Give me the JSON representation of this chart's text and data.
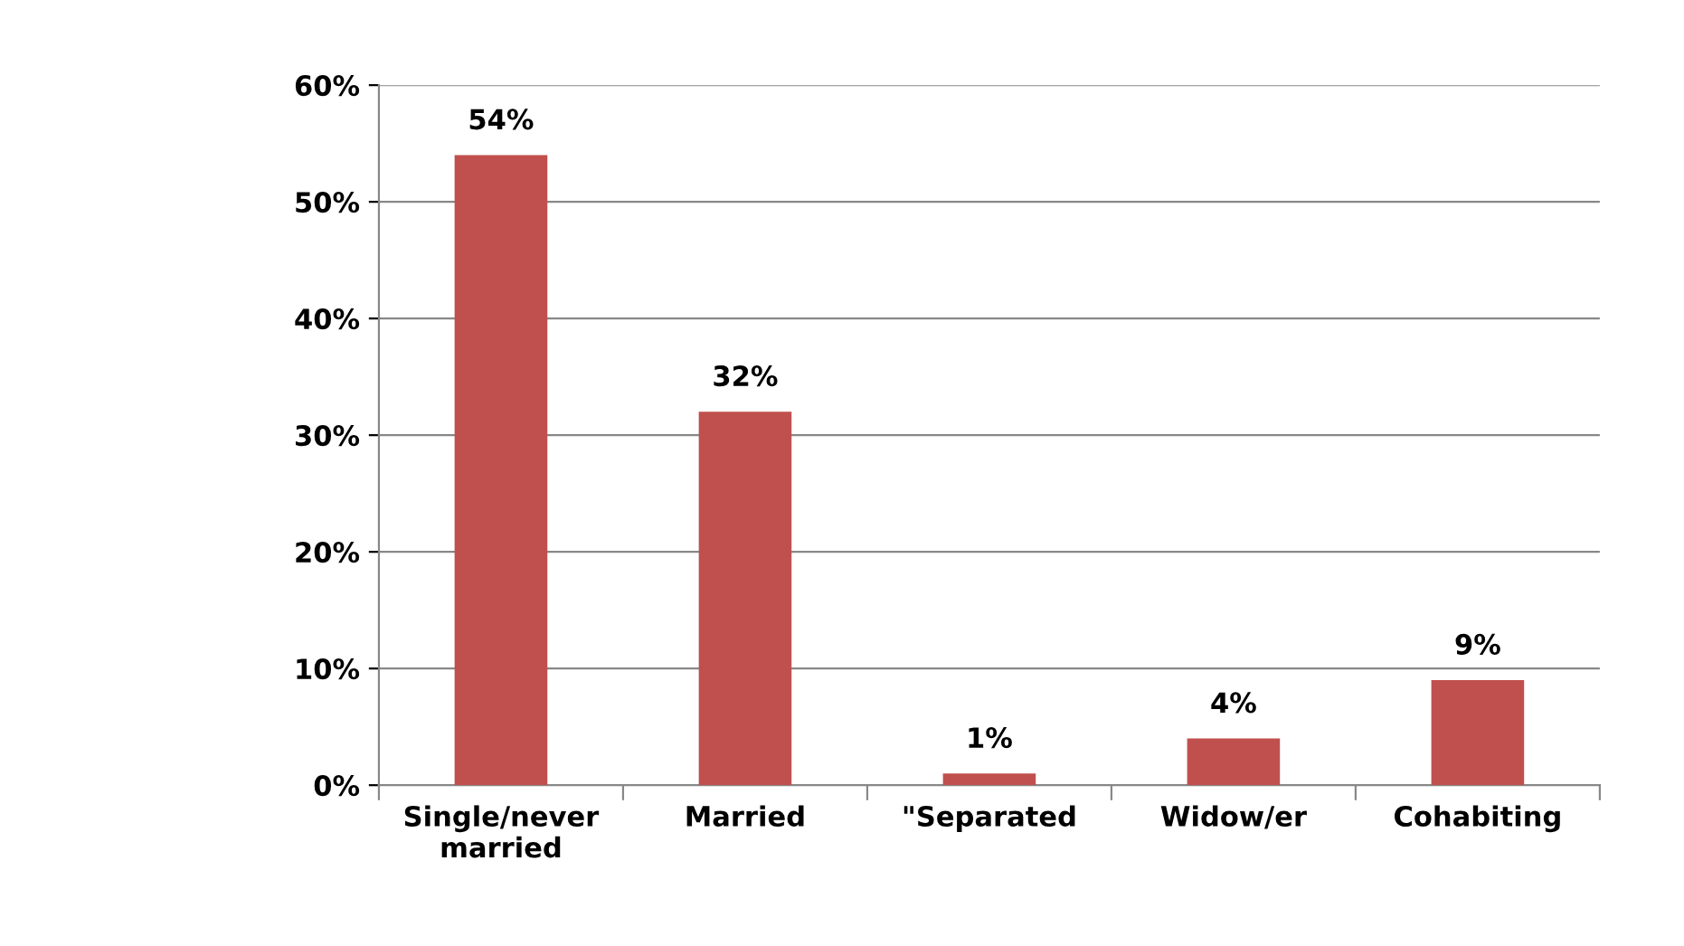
{
  "chart_data": {
    "type": "bar",
    "categories": [
      "Single/never\nmarried",
      "Married",
      "\"Separated",
      "Widow/er",
      "Cohabiting"
    ],
    "values": [
      54,
      32,
      1,
      4,
      9
    ],
    "value_labels": [
      "54%",
      "32%",
      "1%",
      "4%",
      "9%"
    ],
    "color": "#c0504d",
    "ylim": [
      0,
      60
    ],
    "yticks": [
      {
        "value": 0,
        "label": "0%"
      },
      {
        "value": 10,
        "label": "10%"
      },
      {
        "value": 20,
        "label": "20%"
      },
      {
        "value": 30,
        "label": "30%"
      },
      {
        "value": 40,
        "label": "40%"
      },
      {
        "value": 50,
        "label": "50%"
      },
      {
        "value": 60,
        "label": "60%"
      }
    ],
    "grid": "y"
  }
}
